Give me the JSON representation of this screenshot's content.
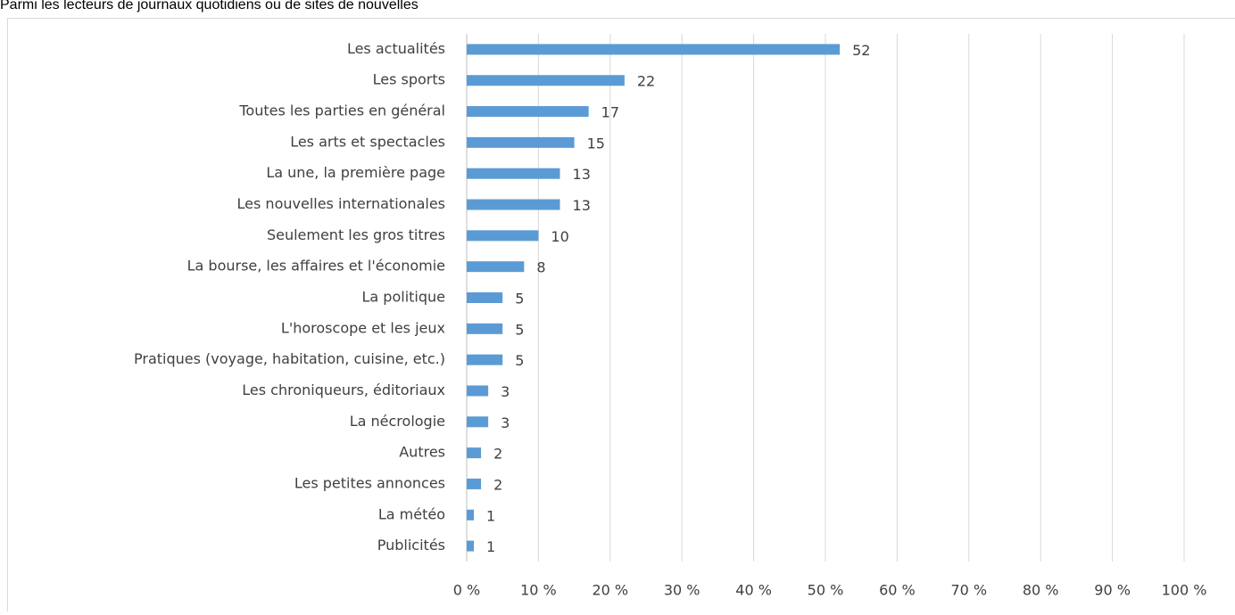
{
  "chart_data": {
    "type": "bar",
    "orientation": "horizontal",
    "title": "Parmi les lecteurs de journaux quotidiens ou de sites de nouvelles",
    "categories": [
      "Les actualités",
      "Les sports",
      "Toutes les parties en général",
      "Les arts et spectacles",
      "La une, la première page",
      "Les nouvelles internationales",
      "Seulement les gros titres",
      "La bourse, les affaires et l'économie",
      "La politique",
      "L'horoscope et les jeux",
      "Pratiques (voyage, habitation, cuisine, etc.)",
      "Les chroniqueurs, éditoriaux",
      "La nécrologie",
      "Autres",
      "Les petites annonces",
      "La météo",
      "Publicités"
    ],
    "values": [
      52,
      22,
      17,
      15,
      13,
      13,
      10,
      8,
      5,
      5,
      5,
      3,
      3,
      2,
      2,
      1,
      1
    ],
    "color": "#5b9bd5",
    "xlim": [
      0,
      100
    ],
    "xticks": [
      {
        "value": 0,
        "label": "0 %"
      },
      {
        "value": 10,
        "label": "10 %"
      },
      {
        "value": 20,
        "label": "20 %"
      },
      {
        "value": 30,
        "label": "30 %"
      },
      {
        "value": 40,
        "label": "40 %"
      },
      {
        "value": 50,
        "label": "50 %"
      },
      {
        "value": 60,
        "label": "60 %"
      },
      {
        "value": 70,
        "label": "70 %"
      },
      {
        "value": 80,
        "label": "80 %"
      },
      {
        "value": 90,
        "label": "90 %"
      },
      {
        "value": 100,
        "label": "100 %"
      }
    ],
    "grid": true
  }
}
